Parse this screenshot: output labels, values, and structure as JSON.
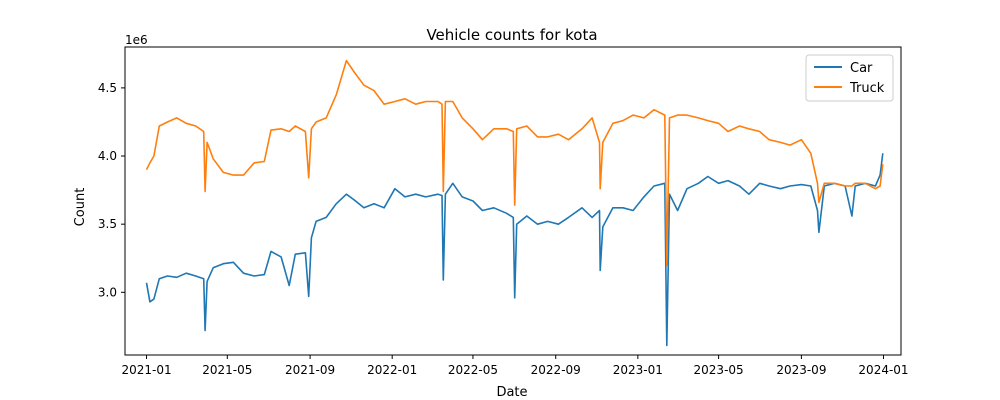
{
  "chart_data": {
    "type": "line",
    "title": "Vehicle counts for kota",
    "xlabel": "Date",
    "ylabel": "Count",
    "y_offset_label": "1e6",
    "x_ticks": [
      "2021-01",
      "2021-05",
      "2021-09",
      "2022-01",
      "2022-05",
      "2022-09",
      "2023-01",
      "2023-05",
      "2023-09",
      "2024-01"
    ],
    "y_ticks": [
      "3.0",
      "3.5",
      "4.0",
      "4.5"
    ],
    "xlim": [
      "2020-11-30",
      "2024-01-27"
    ],
    "ylim": [
      2.54,
      4.8
    ],
    "legend": {
      "position": "top-right"
    },
    "series": [
      {
        "name": "Car",
        "color": "#1f77b4",
        "points": [
          [
            "2021-01-01",
            3.07
          ],
          [
            "2021-01-06",
            2.93
          ],
          [
            "2021-01-12",
            2.95
          ],
          [
            "2021-01-20",
            3.1
          ],
          [
            "2021-02-01",
            3.12
          ],
          [
            "2021-02-15",
            3.11
          ],
          [
            "2021-03-01",
            3.14
          ],
          [
            "2021-03-15",
            3.12
          ],
          [
            "2021-03-27",
            3.1
          ],
          [
            "2021-03-29",
            2.72
          ],
          [
            "2021-04-01",
            3.08
          ],
          [
            "2021-04-10",
            3.18
          ],
          [
            "2021-04-25",
            3.21
          ],
          [
            "2021-05-10",
            3.22
          ],
          [
            "2021-05-25",
            3.14
          ],
          [
            "2021-06-10",
            3.12
          ],
          [
            "2021-06-25",
            3.13
          ],
          [
            "2021-07-05",
            3.3
          ],
          [
            "2021-07-20",
            3.26
          ],
          [
            "2021-08-01",
            3.05
          ],
          [
            "2021-08-10",
            3.28
          ],
          [
            "2021-08-25",
            3.29
          ],
          [
            "2021-08-30",
            2.97
          ],
          [
            "2021-09-03",
            3.4
          ],
          [
            "2021-09-10",
            3.52
          ],
          [
            "2021-09-25",
            3.55
          ],
          [
            "2021-10-10",
            3.65
          ],
          [
            "2021-10-25",
            3.72
          ],
          [
            "2021-11-05",
            3.68
          ],
          [
            "2021-11-20",
            3.62
          ],
          [
            "2021-12-05",
            3.65
          ],
          [
            "2021-12-20",
            3.62
          ],
          [
            "2022-01-05",
            3.76
          ],
          [
            "2022-01-20",
            3.7
          ],
          [
            "2022-02-05",
            3.72
          ],
          [
            "2022-02-20",
            3.7
          ],
          [
            "2022-03-10",
            3.72
          ],
          [
            "2022-03-16",
            3.71
          ],
          [
            "2022-03-18",
            3.09
          ],
          [
            "2022-03-21",
            3.72
          ],
          [
            "2022-04-01",
            3.8
          ],
          [
            "2022-04-15",
            3.7
          ],
          [
            "2022-05-01",
            3.67
          ],
          [
            "2022-05-15",
            3.6
          ],
          [
            "2022-06-01",
            3.62
          ],
          [
            "2022-06-20",
            3.58
          ],
          [
            "2022-06-30",
            3.55
          ],
          [
            "2022-07-02",
            2.96
          ],
          [
            "2022-07-05",
            3.5
          ],
          [
            "2022-07-20",
            3.56
          ],
          [
            "2022-08-05",
            3.5
          ],
          [
            "2022-08-20",
            3.52
          ],
          [
            "2022-09-05",
            3.5
          ],
          [
            "2022-09-20",
            3.55
          ],
          [
            "2022-10-10",
            3.62
          ],
          [
            "2022-10-25",
            3.55
          ],
          [
            "2022-11-05",
            3.6
          ],
          [
            "2022-11-06",
            3.16
          ],
          [
            "2022-11-10",
            3.48
          ],
          [
            "2022-11-25",
            3.62
          ],
          [
            "2022-12-10",
            3.62
          ],
          [
            "2022-12-25",
            3.6
          ],
          [
            "2023-01-10",
            3.7
          ],
          [
            "2023-01-25",
            3.78
          ],
          [
            "2023-02-10",
            3.8
          ],
          [
            "2023-02-13",
            2.61
          ],
          [
            "2023-02-17",
            3.72
          ],
          [
            "2023-03-01",
            3.6
          ],
          [
            "2023-03-15",
            3.76
          ],
          [
            "2023-04-01",
            3.8
          ],
          [
            "2023-04-15",
            3.85
          ],
          [
            "2023-05-01",
            3.8
          ],
          [
            "2023-05-15",
            3.82
          ],
          [
            "2023-06-01",
            3.78
          ],
          [
            "2023-06-15",
            3.72
          ],
          [
            "2023-07-01",
            3.8
          ],
          [
            "2023-07-15",
            3.78
          ],
          [
            "2023-08-01",
            3.76
          ],
          [
            "2023-08-15",
            3.78
          ],
          [
            "2023-09-01",
            3.79
          ],
          [
            "2023-09-15",
            3.78
          ],
          [
            "2023-09-25",
            3.6
          ],
          [
            "2023-09-27",
            3.44
          ],
          [
            "2023-10-05",
            3.78
          ],
          [
            "2023-10-20",
            3.8
          ],
          [
            "2023-11-05",
            3.78
          ],
          [
            "2023-11-15",
            3.56
          ],
          [
            "2023-11-20",
            3.78
          ],
          [
            "2023-12-05",
            3.8
          ],
          [
            "2023-12-20",
            3.78
          ],
          [
            "2023-12-27",
            3.86
          ],
          [
            "2023-12-31",
            4.02
          ]
        ]
      },
      {
        "name": "Truck",
        "color": "#ff7f0e",
        "points": [
          [
            "2021-01-01",
            3.9
          ],
          [
            "2021-01-06",
            3.95
          ],
          [
            "2021-01-12",
            4.0
          ],
          [
            "2021-01-20",
            4.22
          ],
          [
            "2021-02-01",
            4.25
          ],
          [
            "2021-02-15",
            4.28
          ],
          [
            "2021-03-01",
            4.24
          ],
          [
            "2021-03-15",
            4.22
          ],
          [
            "2021-03-27",
            4.18
          ],
          [
            "2021-03-29",
            3.74
          ],
          [
            "2021-04-01",
            4.1
          ],
          [
            "2021-04-10",
            3.98
          ],
          [
            "2021-04-25",
            3.88
          ],
          [
            "2021-05-10",
            3.86
          ],
          [
            "2021-05-25",
            3.86
          ],
          [
            "2021-06-10",
            3.95
          ],
          [
            "2021-06-25",
            3.96
          ],
          [
            "2021-07-05",
            4.19
          ],
          [
            "2021-07-20",
            4.2
          ],
          [
            "2021-08-01",
            4.18
          ],
          [
            "2021-08-10",
            4.22
          ],
          [
            "2021-08-25",
            4.18
          ],
          [
            "2021-08-30",
            3.84
          ],
          [
            "2021-09-03",
            4.2
          ],
          [
            "2021-09-10",
            4.25
          ],
          [
            "2021-09-25",
            4.28
          ],
          [
            "2021-10-10",
            4.45
          ],
          [
            "2021-10-25",
            4.7
          ],
          [
            "2021-11-05",
            4.62
          ],
          [
            "2021-11-20",
            4.52
          ],
          [
            "2021-12-05",
            4.48
          ],
          [
            "2021-12-20",
            4.38
          ],
          [
            "2022-01-05",
            4.4
          ],
          [
            "2022-01-20",
            4.42
          ],
          [
            "2022-02-05",
            4.38
          ],
          [
            "2022-02-20",
            4.4
          ],
          [
            "2022-03-10",
            4.4
          ],
          [
            "2022-03-16",
            4.38
          ],
          [
            "2022-03-18",
            3.74
          ],
          [
            "2022-03-21",
            4.4
          ],
          [
            "2022-04-01",
            4.4
          ],
          [
            "2022-04-15",
            4.28
          ],
          [
            "2022-05-01",
            4.2
          ],
          [
            "2022-05-15",
            4.12
          ],
          [
            "2022-06-01",
            4.2
          ],
          [
            "2022-06-20",
            4.2
          ],
          [
            "2022-06-30",
            4.18
          ],
          [
            "2022-07-02",
            3.64
          ],
          [
            "2022-07-05",
            4.2
          ],
          [
            "2022-07-20",
            4.22
          ],
          [
            "2022-08-05",
            4.14
          ],
          [
            "2022-08-20",
            4.14
          ],
          [
            "2022-09-05",
            4.16
          ],
          [
            "2022-09-20",
            4.12
          ],
          [
            "2022-10-10",
            4.2
          ],
          [
            "2022-10-25",
            4.28
          ],
          [
            "2022-11-05",
            4.1
          ],
          [
            "2022-11-06",
            3.76
          ],
          [
            "2022-11-10",
            4.1
          ],
          [
            "2022-11-25",
            4.24
          ],
          [
            "2022-12-10",
            4.26
          ],
          [
            "2022-12-25",
            4.3
          ],
          [
            "2023-01-10",
            4.28
          ],
          [
            "2023-01-25",
            4.34
          ],
          [
            "2023-02-10",
            4.3
          ],
          [
            "2023-02-13",
            3.2
          ],
          [
            "2023-02-17",
            4.28
          ],
          [
            "2023-03-01",
            4.3
          ],
          [
            "2023-03-15",
            4.3
          ],
          [
            "2023-04-01",
            4.28
          ],
          [
            "2023-04-15",
            4.26
          ],
          [
            "2023-05-01",
            4.24
          ],
          [
            "2023-05-15",
            4.18
          ],
          [
            "2023-06-01",
            4.22
          ],
          [
            "2023-06-15",
            4.2
          ],
          [
            "2023-07-01",
            4.18
          ],
          [
            "2023-07-15",
            4.12
          ],
          [
            "2023-08-01",
            4.1
          ],
          [
            "2023-08-15",
            4.08
          ],
          [
            "2023-09-01",
            4.12
          ],
          [
            "2023-09-15",
            4.02
          ],
          [
            "2023-09-25",
            3.8
          ],
          [
            "2023-09-27",
            3.66
          ],
          [
            "2023-10-05",
            3.8
          ],
          [
            "2023-10-20",
            3.8
          ],
          [
            "2023-11-05",
            3.78
          ],
          [
            "2023-11-15",
            3.78
          ],
          [
            "2023-11-20",
            3.8
          ],
          [
            "2023-12-05",
            3.8
          ],
          [
            "2023-12-20",
            3.76
          ],
          [
            "2023-12-27",
            3.78
          ],
          [
            "2023-12-31",
            3.94
          ]
        ]
      }
    ]
  }
}
